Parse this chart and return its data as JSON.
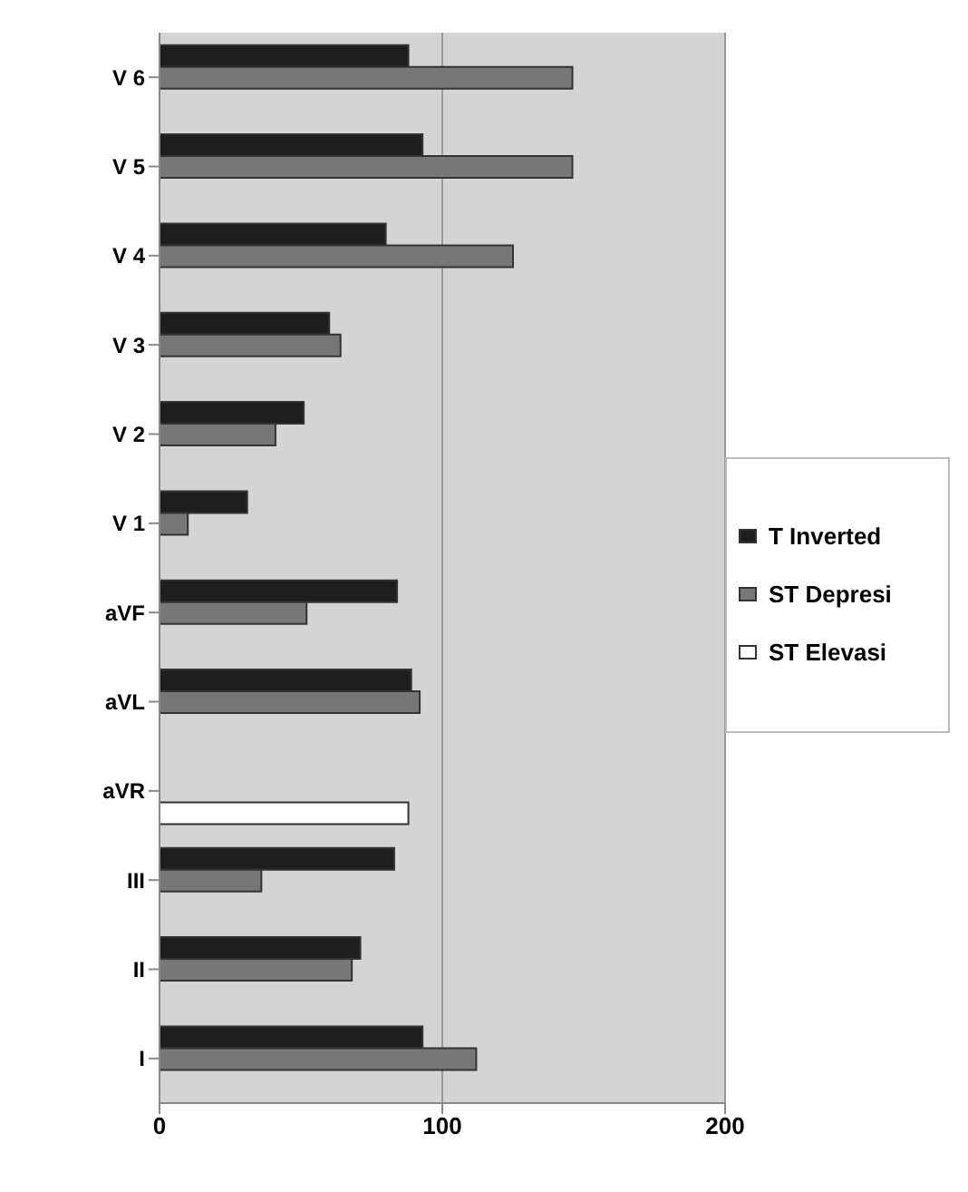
{
  "chart_data": {
    "type": "bar",
    "orientation": "horizontal",
    "categories": [
      "V 6",
      "V 5",
      "V 4",
      "V 3",
      "V 2",
      "V 1",
      "aVF",
      "aVL",
      "aVR",
      "III",
      "II",
      "I"
    ],
    "series": [
      {
        "name": "T Inverted",
        "color": "#1e1e1e",
        "values": [
          88,
          93,
          80,
          60,
          51,
          31,
          84,
          89,
          null,
          83,
          71,
          93
        ]
      },
      {
        "name": "ST Depresi",
        "color": "#777777",
        "values": [
          146,
          146,
          125,
          64,
          41,
          10,
          52,
          92,
          null,
          36,
          68,
          112
        ]
      },
      {
        "name": "ST Elevasi",
        "color": "#ffffff",
        "values": [
          null,
          null,
          null,
          null,
          null,
          null,
          null,
          null,
          88,
          null,
          null,
          null
        ]
      }
    ],
    "xlim": [
      0,
      200
    ],
    "xticks": [
      0,
      100,
      200
    ],
    "grid": "x",
    "legend": "right"
  }
}
